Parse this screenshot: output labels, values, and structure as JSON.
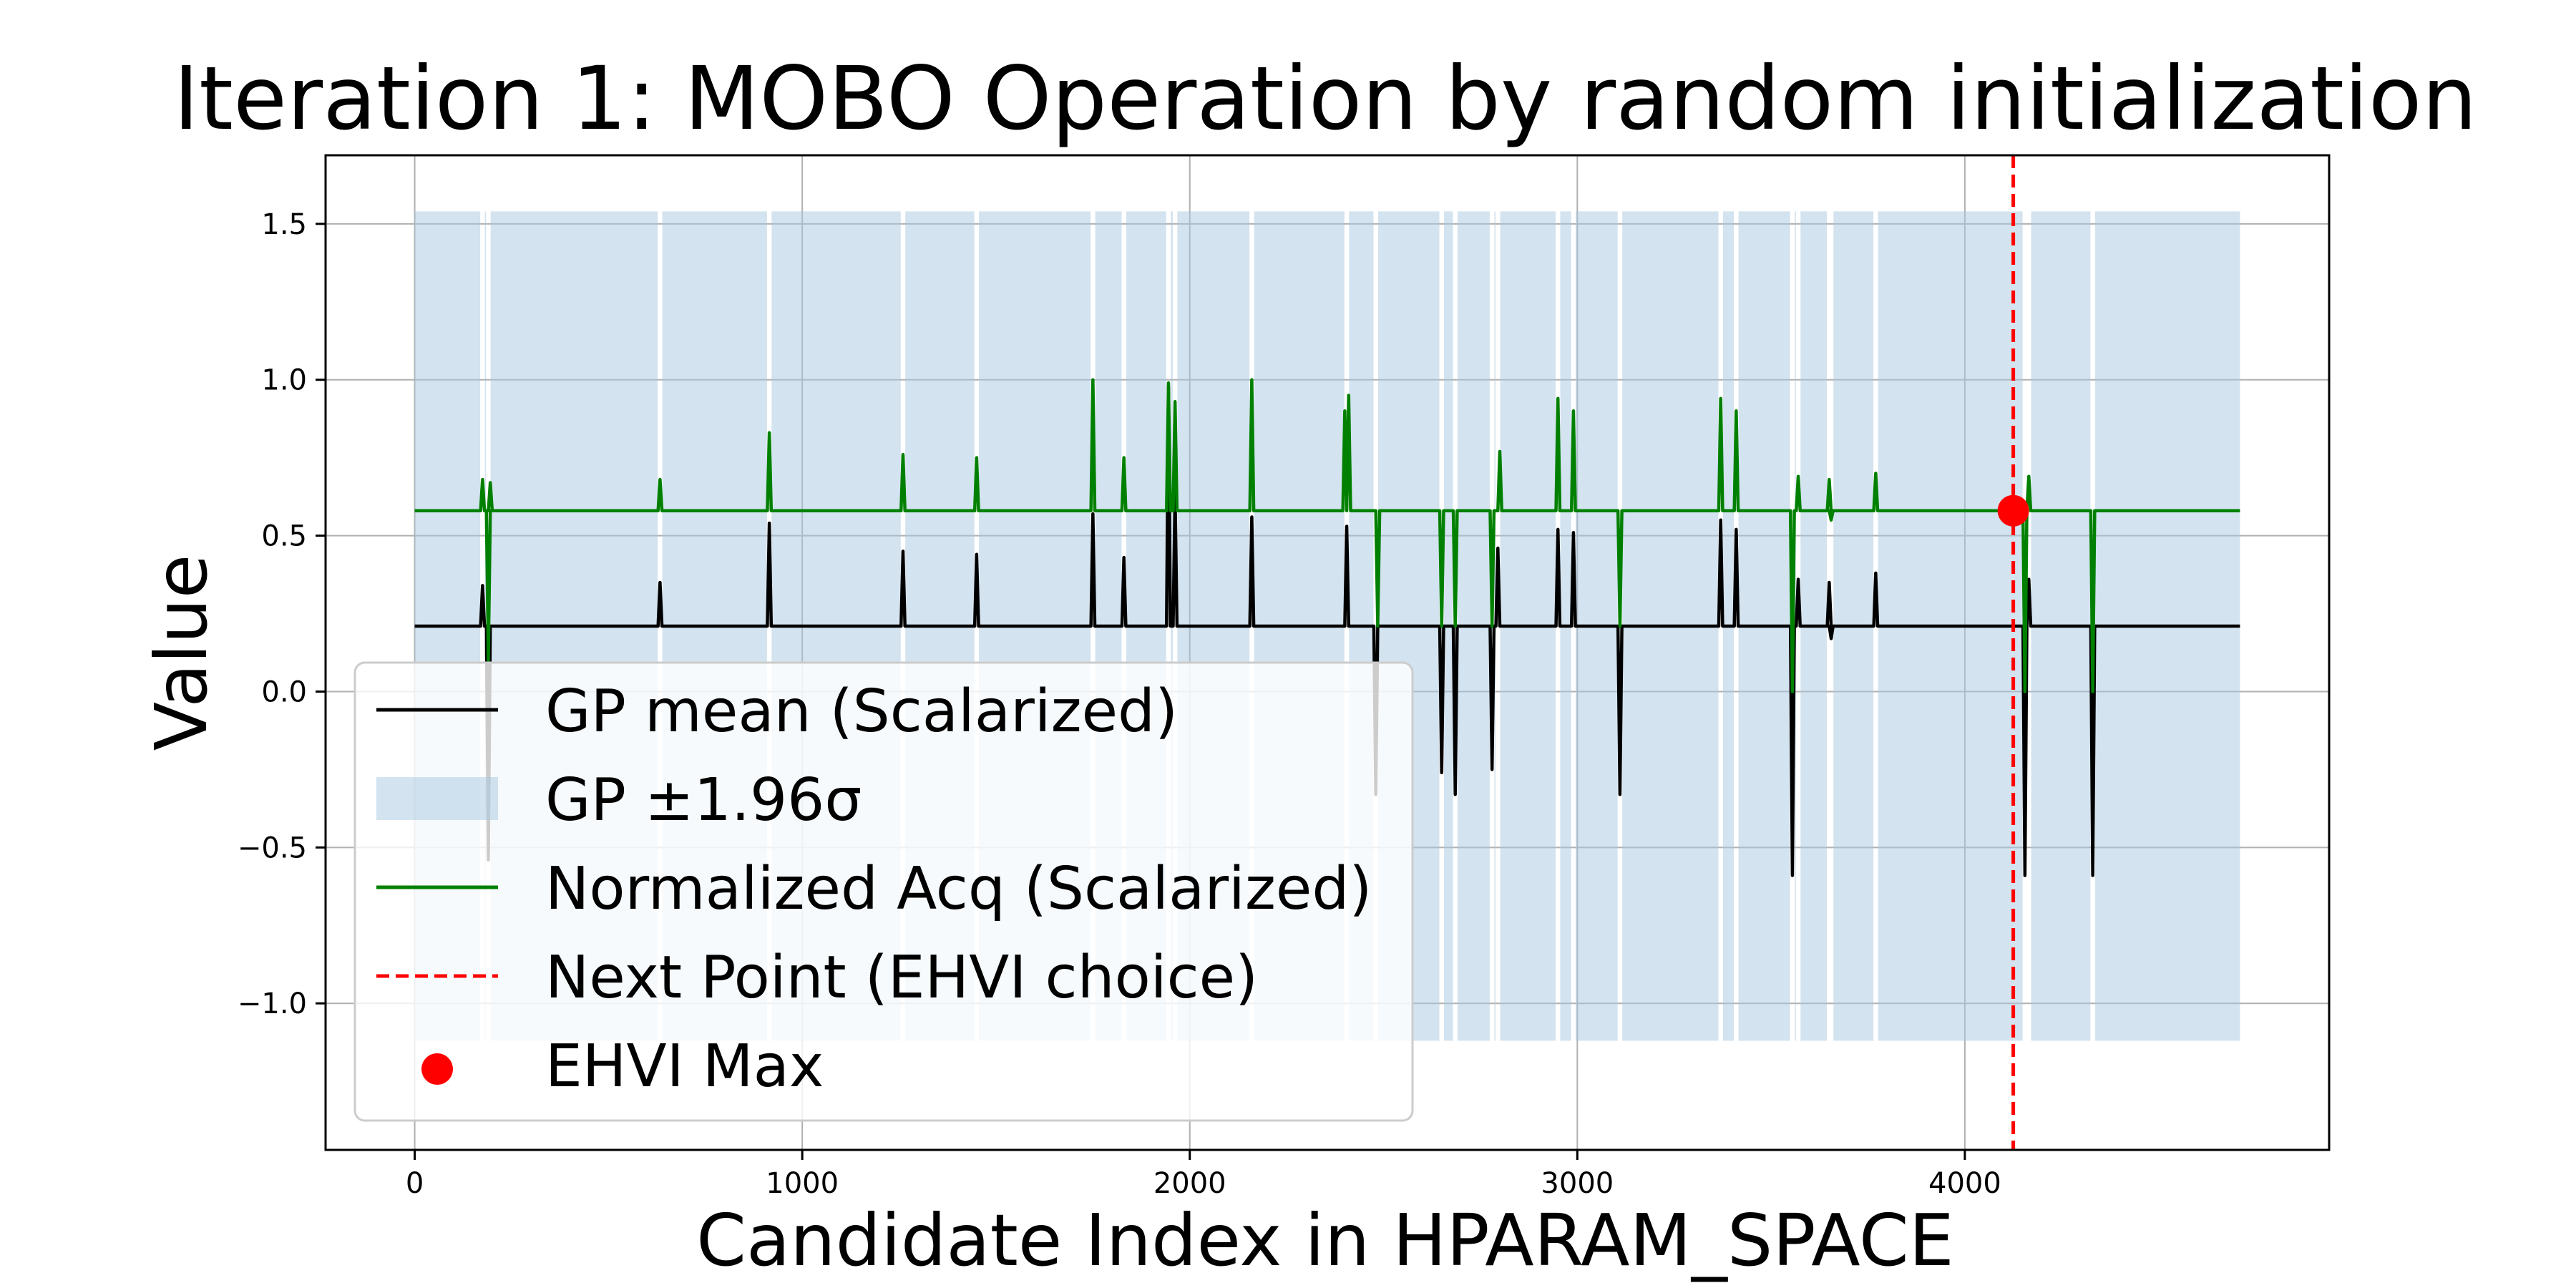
{
  "chart_data": {
    "type": "line",
    "title": "Iteration 1: MOBO Operation by random initialization",
    "xlabel": "Candidate Index in HPARAM_SPACE",
    "ylabel": "Value",
    "xlim": [
      -230,
      4940
    ],
    "ylim": [
      -1.47,
      1.72
    ],
    "xticks": [
      0,
      1000,
      2000,
      3000,
      4000
    ],
    "yticks": [
      -1.0,
      -0.5,
      0.0,
      0.5,
      1.0,
      1.5
    ],
    "ytick_labels": [
      "−1.0",
      "−0.5",
      "0.0",
      "0.5",
      "1.0",
      "1.5"
    ],
    "grid": true,
    "legend_position": "lower-left",
    "legend": {
      "gp_mean": "GP mean (Scalarized)",
      "gp_band": "GP ±1.96σ",
      "acq": "Normalized Acq (Scalarized)",
      "next_point": "Next Point (EHVI choice)",
      "ehvi_max": "EHVI Max"
    },
    "x_range": [
      0,
      4710
    ],
    "series": [
      {
        "name": "GP mean (Scalarized)",
        "color": "#000000",
        "baseline": 0.21,
        "features": [
          [
            175,
            0.34
          ],
          [
            190,
            -0.54
          ],
          [
            633,
            0.35
          ],
          [
            915,
            0.54
          ],
          [
            1260,
            0.45
          ],
          [
            1450,
            0.44
          ],
          [
            1750,
            0.57
          ],
          [
            1830,
            0.43
          ],
          [
            1945,
            0.98
          ],
          [
            1962,
            0.64
          ],
          [
            2160,
            0.56
          ],
          [
            2405,
            0.53
          ],
          [
            2480,
            -0.33
          ],
          [
            2650,
            -0.26
          ],
          [
            2685,
            -0.33
          ],
          [
            2780,
            -0.25
          ],
          [
            2795,
            0.46
          ],
          [
            2950,
            0.52
          ],
          [
            2990,
            0.51
          ],
          [
            3110,
            -0.33
          ],
          [
            3370,
            0.55
          ],
          [
            3410,
            0.52
          ],
          [
            3555,
            -0.59
          ],
          [
            3570,
            0.36
          ],
          [
            3650,
            0.35
          ],
          [
            3655,
            0.17
          ],
          [
            3770,
            0.38
          ],
          [
            4155,
            -0.59
          ],
          [
            4165,
            0.36
          ],
          [
            4330,
            -0.59
          ]
        ]
      },
      {
        "name": "Normalized Acq (Scalarized)",
        "color": "#008000",
        "baseline": 0.58,
        "features": [
          [
            175,
            0.68
          ],
          [
            190,
            0.1
          ],
          [
            195,
            0.67
          ],
          [
            633,
            0.68
          ],
          [
            915,
            0.83
          ],
          [
            1260,
            0.76
          ],
          [
            1450,
            0.75
          ],
          [
            1750,
            1.0
          ],
          [
            1830,
            0.75
          ],
          [
            1945,
            0.99
          ],
          [
            1962,
            0.93
          ],
          [
            2160,
            1.0
          ],
          [
            2400,
            0.9
          ],
          [
            2410,
            0.95
          ],
          [
            2485,
            0.21
          ],
          [
            2650,
            0.21
          ],
          [
            2685,
            0.21
          ],
          [
            2780,
            0.21
          ],
          [
            2800,
            0.77
          ],
          [
            2950,
            0.94
          ],
          [
            2990,
            0.9
          ],
          [
            3110,
            0.21
          ],
          [
            3370,
            0.94
          ],
          [
            3410,
            0.9
          ],
          [
            3555,
            0.0
          ],
          [
            3570,
            0.69
          ],
          [
            3650,
            0.68
          ],
          [
            3655,
            0.55
          ],
          [
            3770,
            0.7
          ],
          [
            4155,
            0.0
          ],
          [
            4165,
            0.69
          ],
          [
            4330,
            0.0
          ]
        ]
      },
      {
        "name": "GP ±1.96σ",
        "color": "#a8c8e0",
        "upper": 1.54,
        "lower": -1.12
      }
    ],
    "next_point": {
      "name": "Next Point (EHVI choice)",
      "x": 4125,
      "color": "#ff0000"
    },
    "ehvi_max": {
      "name": "EHVI Max",
      "x": 4125,
      "y": 0.58,
      "color": "#ff0000"
    }
  }
}
